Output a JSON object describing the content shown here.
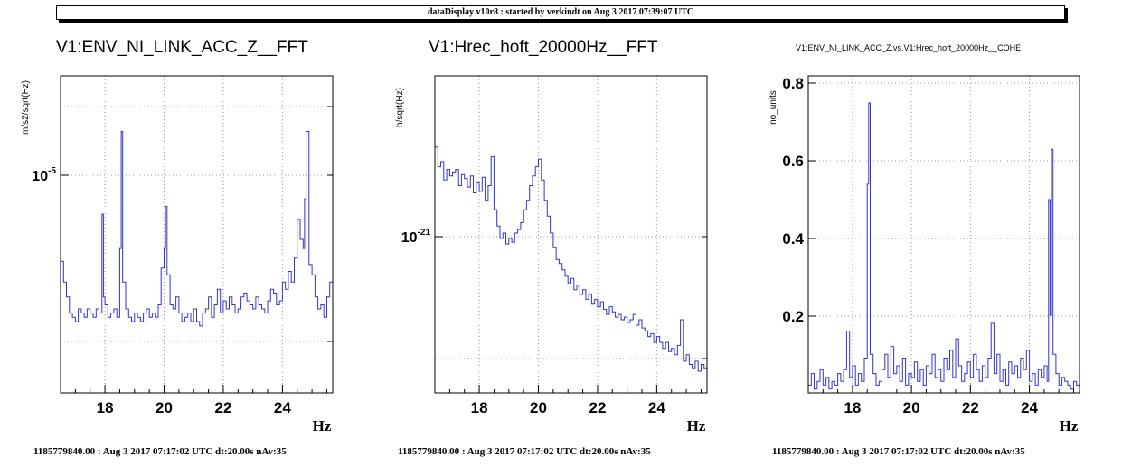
{
  "header": "dataDisplay v10r8 : started by verkindt on Aug  3 2017 07:39:07 UTC",
  "footer": "1185779840.00 : Aug  3 2017 07:17:02 UTC dt:20.00s nAv:35",
  "chart_data": [
    {
      "type": "line",
      "title": "V1:ENV_NI_LINK_ACC_Z__FFT",
      "ylabel": "m/s2/sqrt(Hz)",
      "xlabel": "Hz",
      "yscale": "log",
      "grid": true,
      "color": "#3333cc",
      "xlim": [
        16.5,
        25.7
      ],
      "ylim": [
        3.6e-06,
        1.55e-05
      ],
      "xticks": [
        "18",
        "20",
        "22",
        "24"
      ],
      "yticks": [
        "10^-5"
      ],
      "x": [
        16.5,
        16.6,
        16.7,
        16.8,
        16.9,
        17.0,
        17.1,
        17.2,
        17.3,
        17.4,
        17.5,
        17.6,
        17.7,
        17.8,
        17.9,
        17.95,
        18.0,
        18.1,
        18.2,
        18.3,
        18.4,
        18.5,
        18.55,
        18.6,
        18.7,
        18.8,
        18.9,
        19.0,
        19.1,
        19.2,
        19.3,
        19.4,
        19.5,
        19.6,
        19.7,
        19.8,
        19.9,
        20.0,
        20.05,
        20.1,
        20.2,
        20.3,
        20.4,
        20.5,
        20.6,
        20.7,
        20.8,
        20.9,
        21.0,
        21.1,
        21.2,
        21.3,
        21.4,
        21.5,
        21.6,
        21.7,
        21.8,
        21.9,
        22.0,
        22.1,
        22.2,
        22.3,
        22.4,
        22.5,
        22.6,
        22.7,
        22.8,
        22.9,
        23.0,
        23.1,
        23.2,
        23.3,
        23.4,
        23.5,
        23.6,
        23.7,
        23.8,
        23.9,
        24.0,
        24.1,
        24.2,
        24.3,
        24.4,
        24.5,
        24.6,
        24.7,
        24.75,
        24.8,
        24.9,
        25.0,
        25.1,
        25.2,
        25.3,
        25.4,
        25.5,
        25.6
      ],
      "values": [
        6.6e-06,
        6e-06,
        5.6e-06,
        5.2e-06,
        5.1e-06,
        5e-06,
        5.3e-06,
        5.2e-06,
        5.1e-06,
        5.3e-06,
        5.2e-06,
        5.1e-06,
        5.3e-06,
        5.2e-06,
        8.2e-06,
        5.6e-06,
        5.4e-06,
        5.1e-06,
        5.2e-06,
        5.3e-06,
        5.1e-06,
        7e-06,
        1.2e-05,
        6e-06,
        5.3e-06,
        5.1e-06,
        5e-06,
        5.2e-06,
        5.1e-06,
        5e-06,
        5.2e-06,
        5.3e-06,
        5.1e-06,
        5.2e-06,
        5.1e-06,
        5.4e-06,
        6.4e-06,
        7e-06,
        8.5e-06,
        6.2e-06,
        5.4e-06,
        5.3e-06,
        5.6e-06,
        5.2e-06,
        5e-06,
        5.1e-06,
        5.2e-06,
        5e-06,
        5.3e-06,
        5e-06,
        4.9e-06,
        5.2e-06,
        5.3e-06,
        5.6e-06,
        5.1e-06,
        5.4e-06,
        5.8e-06,
        5.2e-06,
        5.5e-06,
        5.3e-06,
        5.6e-06,
        5.4e-06,
        5.2e-06,
        5.3e-06,
        5.6e-06,
        5.7e-06,
        5.5e-06,
        5.4e-06,
        5.3e-06,
        5.6e-06,
        5.4e-06,
        5.3e-06,
        5.2e-06,
        5.5e-06,
        5.8e-06,
        5.7e-06,
        5.4e-06,
        5.5e-06,
        6e-06,
        5.8e-06,
        6.3e-06,
        6e-06,
        6.7e-06,
        8e-06,
        7.3e-06,
        7e-06,
        8.8e-06,
        1.2e-05,
        6.5e-06,
        6.2e-06,
        5.6e-06,
        5.3e-06,
        5.4e-06,
        5.1e-06,
        5.6e-06,
        6e-06
      ]
    },
    {
      "type": "line",
      "title": "V1:Hrec_hoft_20000Hz__FFT",
      "ylabel": "h/sqrt(Hz)",
      "xlabel": "Hz",
      "yscale": "log",
      "grid": true,
      "color": "#3333cc",
      "xlim": [
        16.5,
        25.7
      ],
      "ylim": [
        5.5e-22,
        2.5e-21
      ],
      "xticks": [
        "18",
        "20",
        "22",
        "24"
      ],
      "yticks": [
        "10^-21"
      ],
      "x": [
        16.5,
        16.6,
        16.7,
        16.8,
        16.9,
        17.0,
        17.1,
        17.2,
        17.3,
        17.4,
        17.5,
        17.6,
        17.7,
        17.8,
        17.9,
        18.0,
        18.1,
        18.2,
        18.3,
        18.4,
        18.5,
        18.6,
        18.7,
        18.8,
        18.9,
        19.0,
        19.1,
        19.2,
        19.3,
        19.4,
        19.5,
        19.6,
        19.7,
        19.8,
        19.9,
        20.0,
        20.1,
        20.2,
        20.3,
        20.4,
        20.5,
        20.6,
        20.7,
        20.8,
        20.9,
        21.0,
        21.1,
        21.2,
        21.3,
        21.4,
        21.5,
        21.6,
        21.7,
        21.8,
        21.9,
        22.0,
        22.1,
        22.2,
        22.3,
        22.4,
        22.5,
        22.6,
        22.7,
        22.8,
        22.9,
        23.0,
        23.1,
        23.2,
        23.3,
        23.4,
        23.5,
        23.6,
        23.7,
        23.8,
        23.9,
        24.0,
        24.1,
        24.2,
        24.3,
        24.4,
        24.5,
        24.6,
        24.7,
        24.8,
        24.9,
        25.0,
        25.1,
        25.2,
        25.3,
        25.4,
        25.5,
        25.6
      ],
      "values": [
        1.78e-21,
        1.62e-21,
        1.66e-21,
        1.52e-21,
        1.6e-21,
        1.55e-21,
        1.58e-21,
        1.6e-21,
        1.48e-21,
        1.56e-21,
        1.53e-21,
        1.47e-21,
        1.55e-21,
        1.43e-21,
        1.5e-21,
        1.44e-21,
        1.54e-21,
        1.38e-21,
        1.48e-21,
        1.7e-21,
        1.32e-21,
        1.22e-21,
        1.15e-21,
        1.18e-21,
        1.12e-21,
        1.15e-21,
        1.13e-21,
        1.18e-21,
        1.2e-21,
        1.24e-21,
        1.32e-21,
        1.38e-21,
        1.48e-21,
        1.55e-21,
        1.62e-21,
        1.68e-21,
        1.52e-21,
        1.38e-21,
        1.28e-21,
        1.18e-21,
        1.1e-21,
        1.04e-21,
        1.02e-21,
        9.9e-22,
        9.6e-22,
        9.3e-22,
        9.5e-22,
        9e-22,
        9.2e-22,
        8.8e-22,
        9e-22,
        8.6e-22,
        8.8e-22,
        8.4e-22,
        8.6e-22,
        8.3e-22,
        8.5e-22,
        8.2e-22,
        8e-22,
        8.3e-22,
        8.1e-22,
        7.9e-22,
        8e-22,
        7.8e-22,
        7.9e-22,
        7.7e-22,
        7.8e-22,
        8e-22,
        7.6e-22,
        7.8e-22,
        7.5e-22,
        7.4e-22,
        7.2e-22,
        7.3e-22,
        7e-22,
        7.2e-22,
        7e-22,
        6.8e-22,
        7e-22,
        6.7e-22,
        6.8e-22,
        6.6e-22,
        6.9e-22,
        7.8e-22,
        6.4e-22,
        6.6e-22,
        6.3e-22,
        6.2e-22,
        6.4e-22,
        6.1e-22,
        6.3e-22,
        6.2e-22
      ]
    },
    {
      "type": "line",
      "title": "V1:ENV_NI_LINK_ACC_Z.vs.V1:Hrec_hoft_20000Hz__COHE",
      "ylabel": "no_units",
      "xlabel": "Hz",
      "yscale": "linear",
      "grid": true,
      "color": "#3333cc",
      "xlim": [
        16.5,
        25.7
      ],
      "ylim": [
        0,
        0.82
      ],
      "xticks": [
        "18",
        "20",
        "22",
        "24"
      ],
      "yticks": [
        "0.2",
        "0.4",
        "0.6",
        "0.8"
      ],
      "x": [
        16.5,
        16.6,
        16.7,
        16.8,
        16.9,
        17.0,
        17.1,
        17.2,
        17.3,
        17.4,
        17.5,
        17.6,
        17.7,
        17.8,
        17.9,
        18.0,
        18.1,
        18.2,
        18.3,
        18.4,
        18.5,
        18.55,
        18.6,
        18.7,
        18.8,
        18.9,
        19.0,
        19.1,
        19.2,
        19.3,
        19.4,
        19.5,
        19.6,
        19.7,
        19.8,
        19.9,
        20.0,
        20.1,
        20.2,
        20.3,
        20.4,
        20.5,
        20.6,
        20.7,
        20.8,
        20.9,
        21.0,
        21.1,
        21.2,
        21.3,
        21.4,
        21.5,
        21.6,
        21.7,
        21.8,
        21.9,
        22.0,
        22.1,
        22.2,
        22.3,
        22.4,
        22.5,
        22.6,
        22.7,
        22.8,
        22.9,
        23.0,
        23.1,
        23.2,
        23.3,
        23.4,
        23.5,
        23.6,
        23.7,
        23.8,
        23.9,
        24.0,
        24.1,
        24.2,
        24.3,
        24.4,
        24.5,
        24.6,
        24.65,
        24.7,
        24.75,
        24.8,
        24.9,
        25.0,
        25.1,
        25.2,
        25.3,
        25.4,
        25.5,
        25.6
      ],
      "values": [
        0.02,
        0.05,
        0.01,
        0.03,
        0.06,
        0.02,
        0.04,
        0.01,
        0.03,
        0.02,
        0.05,
        0.03,
        0.06,
        0.16,
        0.04,
        0.07,
        0.02,
        0.05,
        0.03,
        0.09,
        0.54,
        0.75,
        0.1,
        0.05,
        0.02,
        0.03,
        0.06,
        0.1,
        0.04,
        0.12,
        0.05,
        0.07,
        0.03,
        0.09,
        0.02,
        0.05,
        0.04,
        0.08,
        0.03,
        0.06,
        0.02,
        0.07,
        0.05,
        0.1,
        0.04,
        0.06,
        0.03,
        0.09,
        0.06,
        0.11,
        0.04,
        0.14,
        0.07,
        0.03,
        0.05,
        0.08,
        0.04,
        0.1,
        0.06,
        0.03,
        0.07,
        0.04,
        0.09,
        0.18,
        0.05,
        0.1,
        0.03,
        0.06,
        0.02,
        0.08,
        0.05,
        0.07,
        0.04,
        0.09,
        0.06,
        0.11,
        0.03,
        0.05,
        0.02,
        0.06,
        0.04,
        0.07,
        0.03,
        0.5,
        0.2,
        0.63,
        0.1,
        0.05,
        0.02,
        0.04,
        0.03,
        0.02,
        0.01,
        0.03,
        0.02
      ]
    }
  ]
}
